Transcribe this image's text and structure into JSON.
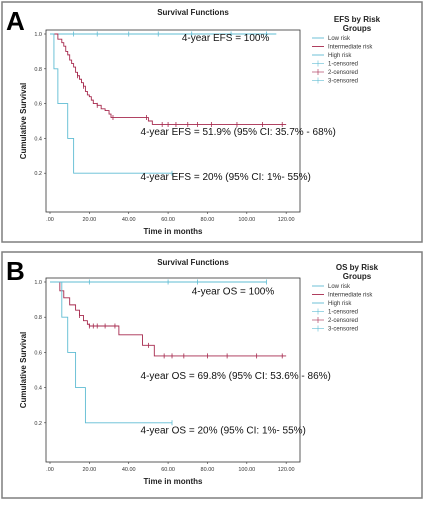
{
  "panels": [
    {
      "letter": "A",
      "chart_data": {
        "type": "line",
        "title": "Survival Functions",
        "xlabel": "Time in months",
        "ylabel": "Cumulative Survival",
        "xlim": [
          0,
          125
        ],
        "ylim": [
          0,
          1.0
        ],
        "x_ticks": [
          ".00",
          "20.00",
          "40.00",
          "60.00",
          "80.00",
          "100.00",
          "120.00"
        ],
        "y_ticks": [
          "0.0",
          "0.2",
          "0.4",
          "0.6",
          "0.8",
          "1.0"
        ],
        "legend": {
          "title": "EFS by Risk Groups",
          "placement": "right",
          "entries": [
            "Low risk",
            "Intermediate risk",
            "High risk",
            "1-censored",
            "2-censored",
            "3-censored"
          ]
        },
        "annotations": [
          {
            "text": "4-year EFS = 100%",
            "x": 67,
            "y": 0.96
          },
          {
            "text": "4-year EFS = 51.9% (95% CI: 35.7% - 68%)",
            "x": 46,
            "y": 0.42
          },
          {
            "text": "4-year EFS = 20% (95% CI: 1%- 55%)",
            "x": 46,
            "y": 0.16
          }
        ],
        "series": [
          {
            "name": "Low risk",
            "color": "#5fbcd3",
            "x": [
              0,
              115
            ],
            "y": [
              1.0,
              1.0
            ],
            "censored": [
              [
                12,
                1.0
              ],
              [
                24,
                1.0
              ],
              [
                40,
                1.0
              ],
              [
                55,
                1.0
              ],
              [
                72,
                1.0
              ],
              [
                92,
                1.0
              ],
              [
                110,
                1.0
              ]
            ]
          },
          {
            "name": "Intermediate risk",
            "color": "#a6294d",
            "x": [
              0,
              4,
              6,
              7,
              8,
              9,
              10,
              11,
              12,
              13,
              14,
              15,
              16,
              17,
              18,
              19,
              20,
              21,
              22,
              24,
              26,
              28,
              30,
              31,
              50,
              52,
              120
            ],
            "y": [
              1.0,
              0.97,
              0.95,
              0.93,
              0.9,
              0.88,
              0.85,
              0.83,
              0.81,
              0.78,
              0.76,
              0.74,
              0.72,
              0.7,
              0.67,
              0.65,
              0.64,
              0.62,
              0.6,
              0.59,
              0.57,
              0.56,
              0.54,
              0.52,
              0.5,
              0.48,
              0.48
            ],
            "censored": [
              [
                14,
                0.76
              ],
              [
                17,
                0.7
              ],
              [
                24,
                0.59
              ],
              [
                32,
                0.52
              ],
              [
                49,
                0.52
              ],
              [
                57,
                0.48
              ],
              [
                60,
                0.48
              ],
              [
                64,
                0.48
              ],
              [
                70,
                0.48
              ],
              [
                75,
                0.48
              ],
              [
                82,
                0.48
              ],
              [
                95,
                0.48
              ],
              [
                108,
                0.48
              ],
              [
                118,
                0.48
              ]
            ]
          },
          {
            "name": "High risk",
            "color": "#5fbcd3",
            "x": [
              0,
              2,
              4,
              9,
              12,
              62
            ],
            "y": [
              1.0,
              0.8,
              0.6,
              0.4,
              0.2,
              0.2
            ],
            "censored": [
              [
                62,
                0.2
              ]
            ]
          }
        ]
      }
    },
    {
      "letter": "B",
      "chart_data": {
        "type": "line",
        "title": "Survival Functions",
        "xlabel": "Time in months",
        "ylabel": "Cumulative Survival",
        "xlim": [
          0,
          125
        ],
        "ylim": [
          0,
          1.0
        ],
        "x_ticks": [
          ".00",
          "20.00",
          "40.00",
          "60.00",
          "80.00",
          "100.00",
          "120.00"
        ],
        "y_ticks": [
          "0.0",
          "0.2",
          "0.4",
          "0.6",
          "0.8",
          "1.0"
        ],
        "legend": {
          "title": "OS by Risk Groups",
          "placement": "right",
          "entries": [
            "Low risk",
            "Intermediate risk",
            "High risk",
            "1-censored",
            "2-censored",
            "3-censored"
          ]
        },
        "annotations": [
          {
            "text": "4-year OS = 100%",
            "x": 72,
            "y": 0.93
          },
          {
            "text": "4-year OS = 69.8% (95% CI: 53.6% - 86%)",
            "x": 46,
            "y": 0.45
          },
          {
            "text": "4-year OS = 20% (95% CI: 1%- 55%)",
            "x": 46,
            "y": 0.14
          }
        ],
        "series": [
          {
            "name": "Low risk",
            "color": "#5fbcd3",
            "x": [
              0,
              110
            ],
            "y": [
              1.0,
              1.0
            ],
            "censored": [
              [
                20,
                1.0
              ],
              [
                60,
                1.0
              ],
              [
                75,
                1.0
              ],
              [
                110,
                1.0
              ]
            ]
          },
          {
            "name": "Intermediate risk",
            "color": "#a6294d",
            "x": [
              0,
              5,
              7,
              10,
              13,
              15,
              17,
              19,
              20,
              35,
              47,
              53,
              120
            ],
            "y": [
              1.0,
              0.95,
              0.91,
              0.87,
              0.84,
              0.81,
              0.78,
              0.76,
              0.75,
              0.7,
              0.64,
              0.58,
              0.58
            ],
            "censored": [
              [
                15,
                0.81
              ],
              [
                20,
                0.75
              ],
              [
                22,
                0.75
              ],
              [
                24,
                0.75
              ],
              [
                28,
                0.75
              ],
              [
                33,
                0.75
              ],
              [
                50,
                0.64
              ],
              [
                58,
                0.58
              ],
              [
                62,
                0.58
              ],
              [
                68,
                0.58
              ],
              [
                80,
                0.58
              ],
              [
                90,
                0.58
              ],
              [
                105,
                0.58
              ],
              [
                118,
                0.58
              ]
            ]
          },
          {
            "name": "High risk",
            "color": "#5fbcd3",
            "x": [
              0,
              6,
              9,
              13,
              18,
              62
            ],
            "y": [
              1.0,
              0.8,
              0.6,
              0.4,
              0.2,
              0.2
            ],
            "censored": [
              [
                62,
                0.2
              ]
            ]
          }
        ]
      }
    }
  ]
}
